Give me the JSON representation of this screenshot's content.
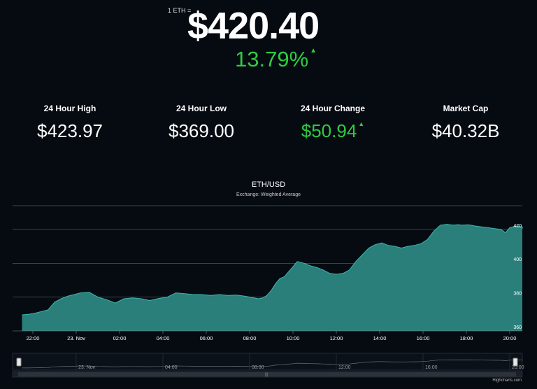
{
  "ticker": {
    "unit_label": "1 ETH =",
    "price": "$420.40",
    "change_pct": "13.79%",
    "direction": "up",
    "up_color": "#2ecc40"
  },
  "stats": [
    {
      "label": "24 Hour High",
      "value": "$423.97",
      "positive": false
    },
    {
      "label": "24 Hour Low",
      "value": "$369.00",
      "positive": false
    },
    {
      "label": "24 Hour Change",
      "value": "$50.94",
      "positive": true
    },
    {
      "label": "Market Cap",
      "value": "$40.32B",
      "positive": false
    }
  ],
  "chart": {
    "title": "ETH/USD",
    "subtitle": "Exchange: Weighted Average",
    "credit": "Highcharts.com",
    "colors": {
      "area": "#2a7f7a",
      "line": "#3fb5ac",
      "grid": "#cfd3d8",
      "axis_text": "#ffffff"
    }
  },
  "chart_data": {
    "type": "area",
    "series": [
      {
        "name": "ETH/USD"
      }
    ],
    "x_tick_labels": [
      "22:00",
      "23. Nov",
      "02:00",
      "04:00",
      "06:00",
      "08:00",
      "10:00",
      "12:00",
      "14:00",
      "16:00",
      "18:00",
      "20:00"
    ],
    "y_tick_labels": [
      "360",
      "380",
      "400",
      "420"
    ],
    "ylim": [
      360,
      434
    ],
    "x_hours": [
      -2.5,
      -2.2,
      -1.9,
      -1.6,
      -1.3,
      -1.0,
      -0.7,
      -0.4,
      -0.1,
      0.2,
      0.6,
      1.0,
      1.4,
      1.8,
      2.2,
      2.6,
      3.0,
      3.4,
      3.8,
      4.2,
      4.6,
      5.0,
      5.4,
      5.8,
      6.2,
      6.6,
      7.0,
      7.4,
      7.8,
      8.2,
      8.4,
      8.6,
      8.8,
      9.0,
      9.2,
      9.4,
      9.6,
      9.8,
      10.0,
      10.2,
      10.5,
      10.8,
      11.1,
      11.4,
      11.7,
      12.0,
      12.3,
      12.6,
      12.9,
      13.2,
      13.5,
      13.8,
      14.1,
      14.4,
      14.7,
      15.0,
      15.3,
      15.6,
      15.9,
      16.2,
      16.5,
      16.8,
      17.1,
      17.4,
      17.6,
      17.8,
      18.1,
      18.4,
      18.7,
      19.0,
      19.3,
      19.6,
      19.8,
      20.0,
      20.3,
      20.6,
      20.8
    ],
    "y_values": [
      369.5,
      369.8,
      370.5,
      371.5,
      372.5,
      377,
      379,
      380.5,
      381.5,
      382.5,
      382.8,
      380,
      378.5,
      376.5,
      379,
      379.5,
      379,
      378,
      379.2,
      380,
      382.5,
      382,
      381.5,
      381.5,
      381,
      381.5,
      381,
      381.2,
      380.5,
      379.5,
      379,
      379.5,
      381,
      384,
      388,
      391,
      392,
      395,
      398,
      401,
      400,
      398.5,
      397.5,
      396,
      394,
      393.5,
      394,
      396,
      401,
      405,
      409,
      411,
      412,
      410.5,
      410,
      409,
      410,
      410.5,
      411.5,
      414,
      419,
      422.5,
      423,
      422.5,
      422.8,
      422.5,
      422.7,
      422,
      421.5,
      421,
      420.5,
      420,
      418,
      421,
      422,
      421.5,
      420.4
    ]
  }
}
